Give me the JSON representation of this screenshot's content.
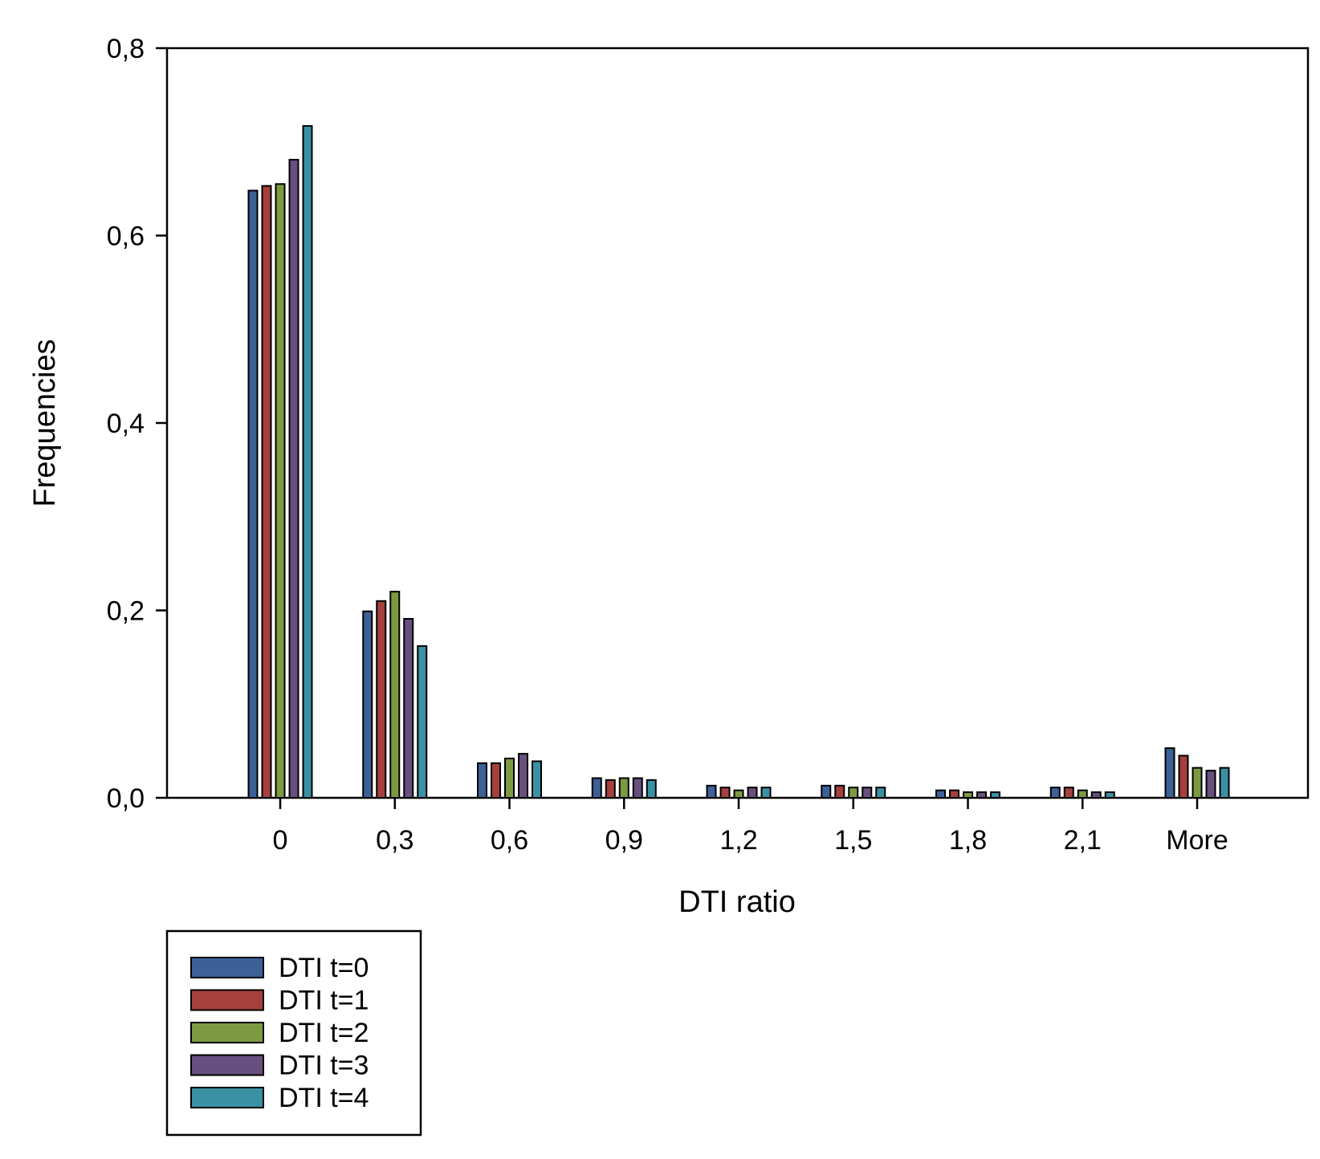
{
  "chart_data": {
    "type": "bar",
    "title": "",
    "xlabel": "DTI ratio",
    "ylabel": "Frequencies",
    "ylim": [
      0,
      0.8
    ],
    "yticks": [
      "0,0",
      "0,2",
      "0,4",
      "0,6",
      "0,8"
    ],
    "ytick_values": [
      0,
      0.2,
      0.4,
      0.6,
      0.8
    ],
    "categories": [
      "0",
      "0,3",
      "0,6",
      "0,9",
      "1,2",
      "1,5",
      "1,8",
      "2,1",
      "More"
    ],
    "legend_position": "bottom-left",
    "grid": false,
    "series": [
      {
        "name": "DTI t=0",
        "color": "#3C6197",
        "values": [
          0.648,
          0.199,
          0.037,
          0.021,
          0.013,
          0.013,
          0.008,
          0.011,
          0.053
        ]
      },
      {
        "name": "DTI t=1",
        "color": "#A5403D",
        "values": [
          0.653,
          0.21,
          0.037,
          0.019,
          0.011,
          0.013,
          0.008,
          0.011,
          0.045
        ]
      },
      {
        "name": "DTI t=2",
        "color": "#7E9A41",
        "values": [
          0.655,
          0.22,
          0.042,
          0.021,
          0.008,
          0.011,
          0.006,
          0.008,
          0.032
        ]
      },
      {
        "name": "DTI t=3",
        "color": "#67507F",
        "values": [
          0.681,
          0.191,
          0.047,
          0.021,
          0.011,
          0.011,
          0.006,
          0.006,
          0.029
        ]
      },
      {
        "name": "DTI t=4",
        "color": "#3A91A4",
        "values": [
          0.717,
          0.162,
          0.039,
          0.019,
          0.011,
          0.011,
          0.006,
          0.006,
          0.032
        ]
      }
    ]
  }
}
